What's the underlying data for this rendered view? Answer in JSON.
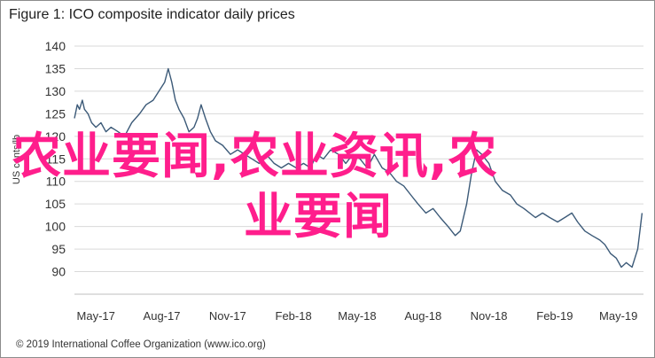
{
  "figure_title": "Figure 1: ICO composite indicator daily prices",
  "footer": "© 2019 International Coffee Organization (www.ico.org)",
  "watermark": {
    "line1": "农业要闻,农业资讯,农",
    "line2": "业要闻",
    "color": "#ff1e8c"
  },
  "chart_data": {
    "type": "line",
    "title": "",
    "xlabel": "",
    "ylabel": "US cents/lb",
    "ylim": [
      85,
      140
    ],
    "yticks": [
      90,
      95,
      100,
      105,
      110,
      115,
      120,
      125,
      130,
      135,
      140
    ],
    "xtick_labels": [
      "May-17",
      "Aug-17",
      "Nov-17",
      "Feb-18",
      "May-18",
      "Aug-18",
      "Nov-18",
      "Feb-19",
      "May-19"
    ],
    "grid": true,
    "line_color": "#3c5a78",
    "series": [
      {
        "name": "",
        "x": [
          "2017-04-01",
          "2017-04-05",
          "2017-04-08",
          "2017-04-12",
          "2017-04-15",
          "2017-04-20",
          "2017-04-25",
          "2017-05-01",
          "2017-05-08",
          "2017-05-15",
          "2017-05-22",
          "2017-06-01",
          "2017-06-10",
          "2017-06-20",
          "2017-07-01",
          "2017-07-10",
          "2017-07-20",
          "2017-07-28",
          "2017-08-05",
          "2017-08-10",
          "2017-08-15",
          "2017-08-20",
          "2017-08-25",
          "2017-09-01",
          "2017-09-08",
          "2017-09-15",
          "2017-09-20",
          "2017-09-25",
          "2017-10-01",
          "2017-10-08",
          "2017-10-15",
          "2017-10-25",
          "2017-11-05",
          "2017-11-15",
          "2017-11-25",
          "2017-12-05",
          "2017-12-15",
          "2017-12-25",
          "2018-01-05",
          "2018-01-15",
          "2018-01-25",
          "2018-02-05",
          "2018-02-15",
          "2018-02-25",
          "2018-03-05",
          "2018-03-15",
          "2018-03-25",
          "2018-04-05",
          "2018-04-15",
          "2018-04-25",
          "2018-05-05",
          "2018-05-15",
          "2018-05-25",
          "2018-06-05",
          "2018-06-15",
          "2018-06-25",
          "2018-07-05",
          "2018-07-15",
          "2018-07-25",
          "2018-08-05",
          "2018-08-15",
          "2018-08-25",
          "2018-09-05",
          "2018-09-15",
          "2018-09-22",
          "2018-10-01",
          "2018-10-08",
          "2018-10-15",
          "2018-10-22",
          "2018-11-01",
          "2018-11-10",
          "2018-11-20",
          "2018-12-01",
          "2018-12-10",
          "2018-12-20",
          "2019-01-05",
          "2019-01-15",
          "2019-01-25",
          "2019-02-05",
          "2019-02-15",
          "2019-02-25",
          "2019-03-05",
          "2019-03-15",
          "2019-03-25",
          "2019-04-05",
          "2019-04-12",
          "2019-04-20",
          "2019-04-28",
          "2019-05-05",
          "2019-05-12",
          "2019-05-20",
          "2019-05-28",
          "2019-06-03"
        ],
        "y": [
          124,
          127,
          126,
          128,
          126,
          125,
          123,
          122,
          123,
          121,
          122,
          121,
          120,
          123,
          125,
          127,
          128,
          130,
          132,
          135,
          132,
          128,
          126,
          124,
          121,
          122,
          124,
          127,
          124,
          121,
          119,
          118,
          116,
          117,
          116,
          115,
          114,
          116,
          114,
          113,
          114,
          113,
          114,
          113,
          116,
          115,
          117,
          116,
          114,
          116,
          115,
          113,
          116,
          113,
          112,
          110,
          109,
          107,
          105,
          103,
          104,
          102,
          100,
          98,
          99,
          105,
          112,
          117,
          116,
          114,
          110,
          108,
          107,
          105,
          104,
          102,
          103,
          102,
          101,
          102,
          103,
          101,
          99,
          98,
          97,
          96,
          94,
          93,
          91,
          92,
          91,
          95,
          103
        ]
      }
    ]
  }
}
